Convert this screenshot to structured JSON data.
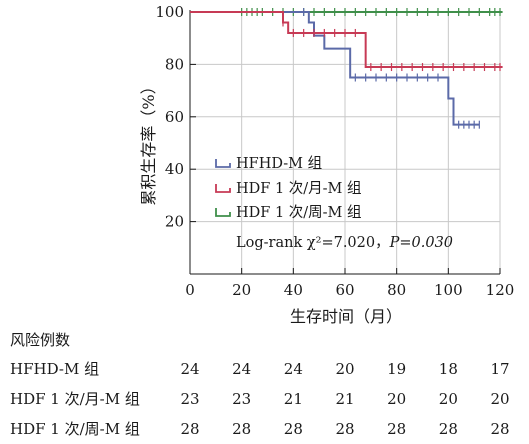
{
  "chart_data": {
    "type": "line",
    "subtype": "kaplan-meier",
    "xlabel": "生存时间（月）",
    "ylabel": "累积生存率（%）",
    "xlim": [
      0,
      120
    ],
    "ylim": [
      0,
      100
    ],
    "xticks": [
      "0",
      "20",
      "40",
      "60",
      "80",
      "100",
      "120"
    ],
    "yticks": [
      "20",
      "40",
      "60",
      "80",
      "100"
    ],
    "legend_position": "inside-bottom-left",
    "stat": {
      "prefix": "Log-rank χ²=7.020，",
      "p": "P=0.030"
    },
    "series": [
      {
        "name": "HFHD-M 组",
        "color": "#5b6aa8",
        "steps": [
          [
            0,
            100
          ],
          [
            44,
            100
          ],
          [
            46,
            96
          ],
          [
            48,
            91
          ],
          [
            52,
            86
          ],
          [
            56,
            86
          ],
          [
            62,
            75
          ],
          [
            98,
            75
          ],
          [
            100,
            67
          ],
          [
            102,
            57
          ],
          [
            112,
            57
          ]
        ],
        "censor": [
          44,
          64,
          68,
          72,
          76,
          80,
          84,
          88,
          92,
          96,
          104,
          106,
          108,
          110,
          112
        ]
      },
      {
        "name": "HDF 1 次/月-M 组",
        "color": "#c73a55",
        "steps": [
          [
            0,
            100
          ],
          [
            32,
            100
          ],
          [
            36,
            96
          ],
          [
            38,
            92
          ],
          [
            64,
            92
          ],
          [
            68,
            79
          ],
          [
            121,
            79
          ]
        ],
        "censor": [
          36,
          40,
          44,
          48,
          52,
          56,
          60,
          64,
          70,
          74,
          78,
          82,
          86,
          90,
          94,
          98,
          102,
          106,
          110,
          114,
          118,
          120
        ]
      },
      {
        "name": "HDF 1 次/周-M 组",
        "color": "#3f8f4a",
        "steps": [
          [
            0,
            100
          ],
          [
            121,
            100
          ]
        ],
        "censor": [
          20,
          22,
          24,
          26,
          28,
          32,
          36,
          40,
          44,
          48,
          52,
          56,
          60,
          64,
          68,
          72,
          76,
          80,
          84,
          88,
          92,
          96,
          100,
          104,
          108,
          112,
          116,
          118,
          120
        ]
      }
    ]
  },
  "risk_table": {
    "title": "风险例数",
    "rows": [
      {
        "label": "HFHD-M 组",
        "values": [
          "24",
          "24",
          "24",
          "20",
          "19",
          "18",
          "17"
        ]
      },
      {
        "label": "HDF 1 次/月-M 组",
        "values": [
          "23",
          "23",
          "21",
          "21",
          "20",
          "20",
          "20"
        ]
      },
      {
        "label": "HDF 1 次/周-M 组",
        "values": [
          "28",
          "28",
          "28",
          "28",
          "28",
          "28",
          "28"
        ]
      }
    ]
  }
}
